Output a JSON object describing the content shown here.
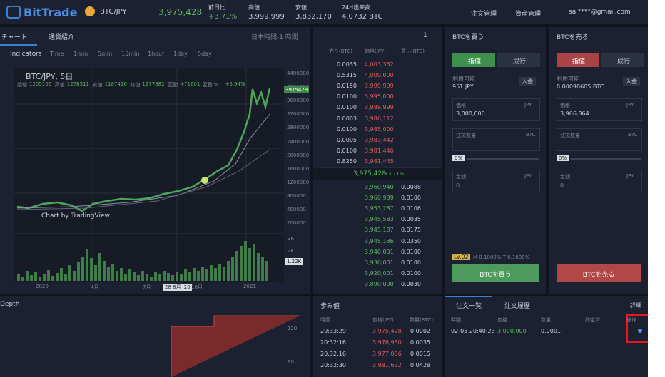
{
  "header": {
    "logo": "BitTrade",
    "pair": "BTC/JPY",
    "price": "3,975,428",
    "stats": [
      {
        "label": "前日比",
        "value": "+3.71%"
      },
      {
        "label": "高値",
        "value": "3,999,999"
      },
      {
        "label": "安値",
        "value": "3,832,170"
      },
      {
        "label": "24H出来高",
        "value": "4.0732 BTC"
      }
    ],
    "nav": [
      "注文管理",
      "資産管理",
      "sai****@gmail.com"
    ]
  },
  "chart_panel": {
    "tabs": [
      "チャート",
      "通貨紹介"
    ],
    "timezone": "日本時間-1 時間",
    "toolbar": [
      "Indicators",
      "Time",
      "1min",
      "5min",
      "15min",
      "1hour",
      "1day",
      "5day"
    ],
    "title": "BTC/JPY, 5日",
    "ohlc": [
      {
        "label": "始値",
        "value": "1205106"
      },
      {
        "label": "高値",
        "value": "1278511"
      },
      {
        "label": "安値",
        "value": "1187416"
      },
      {
        "label": "終値",
        "value": "1277882"
      },
      {
        "label": "変動",
        "value": "+71601"
      },
      {
        "label": "変動 %",
        "value": "+5.94%"
      }
    ],
    "price_labels": [
      "4400000",
      "4000000",
      "3600000",
      "3200000",
      "2800000",
      "2400000",
      "2000000",
      "1600000",
      "1200000",
      "800000",
      "400000",
      "200000"
    ],
    "current_price": "3975428",
    "volume_labels": [
      "3K",
      "2K",
      "1K"
    ],
    "current_volume": "1.22K",
    "date_labels": [
      "2020",
      "4月",
      "7月",
      "28 8月 '20",
      "10月",
      "2021"
    ],
    "watermark": "Chart by TradingView"
  },
  "order_book": {
    "count": "1",
    "headers": [
      "売り(BTC)",
      "価格(JPY)",
      "買い(BTC)"
    ],
    "asks": [
      [
        "0.0035",
        "4,003,362"
      ],
      [
        "0.5315",
        "4,000,000"
      ],
      [
        "0.0150",
        "3,999,999"
      ],
      [
        "0.0100",
        "3,995,000"
      ],
      [
        "0.0100",
        "3,989,999"
      ],
      [
        "0.0003",
        "3,986,112"
      ],
      [
        "0.0100",
        "3,985,000"
      ],
      [
        "0.0005",
        "3,983,442"
      ],
      [
        "0.0100",
        "3,981,446"
      ],
      [
        "0.8250",
        "3,981,445"
      ]
    ],
    "last_price": "3,975,428",
    "change": "+3.71%",
    "bids": [
      [
        "3,960,940",
        "0.0088"
      ],
      [
        "3,960,939",
        "0.0100"
      ],
      [
        "3,953,287",
        "0.0106"
      ],
      [
        "3,945,583",
        "0.0035"
      ],
      [
        "3,945,187",
        "0.0175"
      ],
      [
        "3,945,186",
        "0.0350"
      ],
      [
        "3,940,001",
        "0.0100"
      ],
      [
        "3,930,001",
        "0.0100"
      ],
      [
        "3,920,001",
        "0.0100"
      ],
      [
        "3,890,000",
        "0.0030"
      ]
    ]
  },
  "depth": {
    "title": "Depth",
    "axis_labels": [
      "120",
      "60"
    ]
  },
  "trades": {
    "title": "歩み値",
    "headers": [
      "時間",
      "価格(JPY)",
      "数量(BTC)"
    ],
    "rows": [
      [
        "20:33:29",
        "3,975,428",
        "0.0002"
      ],
      [
        "20:32:16",
        "3,976,930",
        "0.0035"
      ],
      [
        "20:32:16",
        "3,977,036",
        "0.0015"
      ],
      [
        "20:32:30",
        "3,981,622",
        "0.0428"
      ]
    ]
  },
  "buy": {
    "title": "BTCを買う",
    "tabs": [
      "指値",
      "成行"
    ],
    "available_label": "利用可能",
    "available": "951 JPY",
    "deposit": "入金",
    "price_label": "価格",
    "price_unit": "JPY",
    "price": "3,000,000",
    "qty_label": "注文数量",
    "qty_unit": "BTC",
    "slider": "0%",
    "amount_label": "金額",
    "amount_unit": "JPY",
    "amount": "0",
    "button": "BTCを買う"
  },
  "sell": {
    "title": "BTCを売る",
    "tabs": [
      "指値",
      "成行"
    ],
    "available_label": "利用可能",
    "available": "0.00098605 BTC",
    "deposit": "入金",
    "price_label": "価格",
    "price_unit": "JPY",
    "price": "3,966,864",
    "qty_label": "注文数量",
    "qty_unit": "BTC",
    "slider": "0%",
    "amount_label": "金額",
    "amount_unit": "JPY",
    "amount": "0",
    "button": "BTCを売る"
  },
  "level": {
    "badge": "LV.02",
    "fees": "M 0.1000% T 0.1000%"
  },
  "orders": {
    "tabs": [
      "注文一覧",
      "注文履歴"
    ],
    "detail": "詳細",
    "headers": [
      "時間",
      "価格",
      "数量",
      "約定済",
      "操作"
    ],
    "rows": [
      [
        "02-05 20:40:23",
        "3,000,000",
        "0.0001"
      ]
    ]
  }
}
